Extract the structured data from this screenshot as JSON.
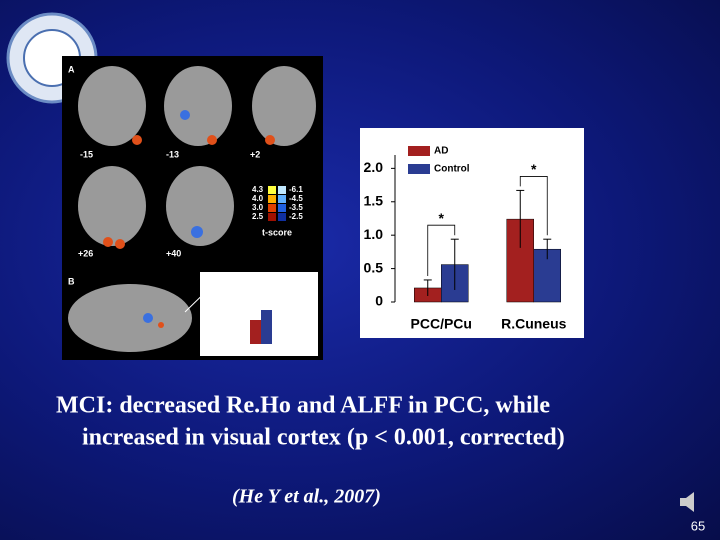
{
  "caption": [
    "MCI: decreased Re.Ho and ALFF in PCC, while",
    "increased in visual cortex (p < 0.001, corrected)"
  ],
  "citation": "(He Y et al., 2007)",
  "page_number": "65",
  "brain_figure": {
    "panel_labels": [
      "A",
      "B"
    ],
    "slice_labels": [
      "-15",
      "-13",
      "+2",
      "+26",
      "+40"
    ],
    "scale_positive": [
      "4.3",
      "4.0",
      "3.0",
      "2.5"
    ],
    "scale_negative": [
      "-6.1",
      "-4.5",
      "-3.5",
      "-2.5"
    ],
    "scale_title": "t-score"
  },
  "chart_data": {
    "type": "bar",
    "categories": [
      "PCC/PCu",
      "R.Cuneus"
    ],
    "series": [
      {
        "name": "AD",
        "color": "#a3201f",
        "values": [
          0.21,
          1.24
        ],
        "errors": [
          0.12,
          0.43
        ]
      },
      {
        "name": "Control",
        "color": "#2a3c92",
        "values": [
          0.56,
          0.79
        ],
        "errors": [
          0.38,
          0.15
        ]
      }
    ],
    "annotations": [
      "*",
      "*"
    ],
    "ylim": [
      0,
      2.2
    ],
    "yticks": [
      0,
      0.5,
      {
        "value": 1,
        "label": "1.0"
      },
      1.5,
      {
        "value": 2,
        "label": "2.0"
      }
    ],
    "legend": "top-left"
  }
}
